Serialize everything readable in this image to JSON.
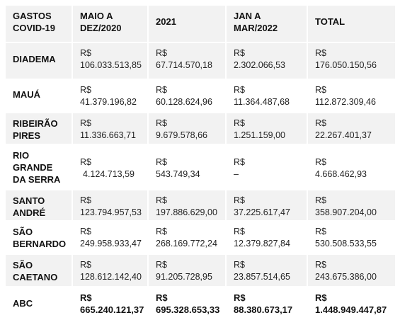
{
  "header": {
    "col0": [
      "GASTOS",
      "COVID-19"
    ],
    "col1": [
      "MAIO A",
      "DEZ/2020"
    ],
    "col2": "2021",
    "col3": [
      "JAN A",
      "MAR/2022"
    ],
    "col4": "TOTAL"
  },
  "rows": [
    {
      "label": [
        "DIADEMA"
      ],
      "currency": "R$",
      "values": [
        "106.033.513,85",
        "67.714.570,18",
        "2.302.066,53",
        "176.050.150,56"
      ]
    },
    {
      "label": [
        "MAUÁ"
      ],
      "currency": "R$",
      "values": [
        "41.379.196,82",
        "60.128.624,96",
        "11.364.487,68",
        "112.872.309,46"
      ]
    },
    {
      "label": [
        "RIBEIRÃO",
        "PIRES"
      ],
      "currency": "R$",
      "values": [
        "11.336.663,71",
        "9.679.578,66",
        "1.251.159,00",
        "22.267.401,37"
      ]
    },
    {
      "label": [
        "RIO",
        "GRANDE",
        "DA SERRA"
      ],
      "currency": "R$",
      "values": [
        "4.124.713,59",
        "543.749,34",
        "–",
        "4.668.462,93"
      ]
    },
    {
      "label": [
        "SANTO",
        "ANDRÉ"
      ],
      "currency": "R$",
      "values": [
        "123.794.957,53",
        "197.886.629,00",
        "37.225.617,47",
        "358.907.204,00"
      ]
    },
    {
      "label": [
        "SÃO",
        "BERNARDO"
      ],
      "currency": "R$",
      "values": [
        "249.958.933,47",
        "268.169.772,24",
        "12.379.827,84",
        "530.508.533,55"
      ]
    },
    {
      "label": [
        "SÃO",
        "CAETANO"
      ],
      "currency": "R$",
      "values": [
        "128.612.142,40",
        "91.205.728,95",
        "23.857.514,65",
        "243.675.386,00"
      ]
    },
    {
      "label": [
        "ABC"
      ],
      "currency": "R$",
      "values": [
        "665.240.121,37",
        "695.328.653,33",
        "88.380.673,17",
        "1.448.949.447,87"
      ]
    }
  ]
}
